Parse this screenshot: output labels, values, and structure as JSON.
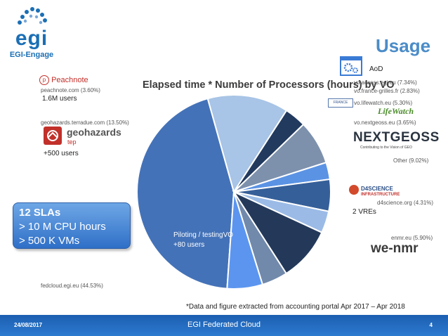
{
  "header": {
    "logo_word": "egi",
    "logo_sub": "EGI-Engage",
    "title": "Usage"
  },
  "chart_data": {
    "type": "pie",
    "title": "Elapsed time * Number of Processors (hours) by VO",
    "slices": [
      {
        "label": "fedcloud.egi.eu (44.53%)",
        "value": 44.53,
        "color": "#4472b8"
      },
      {
        "label": "geohazards.terradue.com (13.50%)",
        "value": 13.5,
        "color": "#a8c4e6"
      },
      {
        "label": "peachnote.com (3.60%)",
        "value": 3.6,
        "color": "#223a5e"
      },
      {
        "label": "vo.access.egi.eu (7.34%)",
        "value": 7.34,
        "color": "#7d91ad"
      },
      {
        "label": "vo.france-grilles.fr (2.83%)",
        "value": 2.83,
        "color": "#5b93e4"
      },
      {
        "label": "vo.lifewatch.eu (5.30%)",
        "value": 5.3,
        "color": "#355f99"
      },
      {
        "label": "vo.nextgeoss.eu (3.65%)",
        "value": 3.65,
        "color": "#9bbbe6"
      },
      {
        "label": "Other (9.02%)",
        "value": 9.02,
        "color": "#24395a"
      },
      {
        "label": "d4science.org (4.31%)",
        "value": 4.31,
        "color": "#7189ab"
      },
      {
        "label": "enmr.eu (5.90%)",
        "value": 5.9,
        "color": "#5b95ef"
      }
    ]
  },
  "annotations": {
    "aod": "AoD",
    "peachnote_users": "1.6M users",
    "geohazards_users": "+500 users",
    "vres": "2 VREs",
    "piloting_line1": "Piloting /  testingVO",
    "piloting_line2": "+80 users",
    "source_note": "*Data and figure extracted from accounting portal Apr 2017 – Apr 2018"
  },
  "logos": {
    "peachnote": "Peachnote",
    "geohazards": "geohazards",
    "geohazards_sub": "tep",
    "france_grilles": "FRANCE GRILLES",
    "lifewatch": "LifeWatch",
    "nextgeoss": "NEXTGEOSS",
    "nextgeoss_sub": "Contributing to the Vision of GEO",
    "d4science": "D4SCIENCE",
    "d4science_sub": "INFRASTRUCTURE",
    "wenmr": "we-nmr"
  },
  "sla_box": {
    "line1": "12 SLAs",
    "line2": "> 10 M CPU hours",
    "line3": "> 500 K VMs"
  },
  "footer": {
    "date": "24/08/2017",
    "center": "EGI Federated Cloud",
    "page": "4"
  },
  "colors": {
    "brand_blue": "#1b6fb5",
    "title_blue": "#4b8cc8",
    "footer_blue": "#2a74c8"
  }
}
